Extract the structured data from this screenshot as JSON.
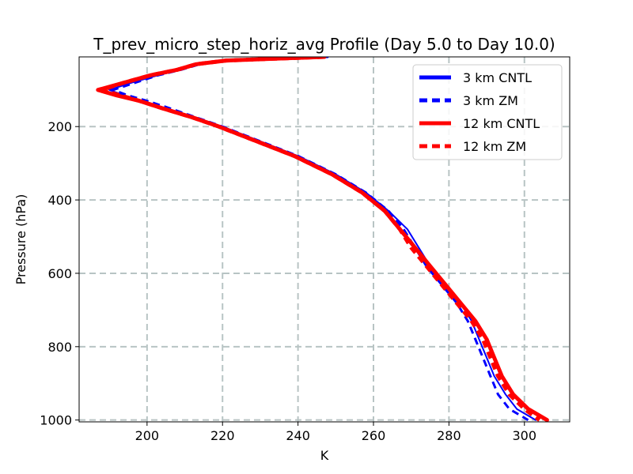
{
  "chart_data": {
    "type": "line",
    "title": "T_prev_micro_step_horiz_avg Profile (Day 5.0 to Day 10.0)",
    "xlabel": "K",
    "ylabel": "Pressure (hPa)",
    "xlim": [
      182,
      312
    ],
    "ylim": [
      1005,
      10
    ],
    "y_inverted": true,
    "grid": true,
    "x_ticks": [
      200,
      220,
      240,
      260,
      280,
      300
    ],
    "y_ticks": [
      200,
      400,
      600,
      800,
      1000
    ],
    "legend_position": "top-right",
    "series": [
      {
        "name": "3 km CNTL",
        "color": "#0000ff",
        "style": "solid",
        "points": [
          [
            248,
            10
          ],
          [
            235,
            15
          ],
          [
            222,
            20
          ],
          [
            214,
            30
          ],
          [
            209,
            45
          ],
          [
            203,
            60
          ],
          [
            196,
            80
          ],
          [
            190,
            100
          ],
          [
            194,
            115
          ],
          [
            199,
            130
          ],
          [
            205,
            150
          ],
          [
            213,
            175
          ],
          [
            220,
            200
          ],
          [
            230,
            240
          ],
          [
            240,
            280
          ],
          [
            250,
            330
          ],
          [
            258,
            380
          ],
          [
            264,
            430
          ],
          [
            269,
            480
          ],
          [
            272,
            530
          ],
          [
            275,
            580
          ],
          [
            279,
            630
          ],
          [
            283,
            680
          ],
          [
            286,
            730
          ],
          [
            288,
            780
          ],
          [
            290,
            830
          ],
          [
            292,
            880
          ],
          [
            295,
            930
          ],
          [
            298,
            970
          ],
          [
            303,
            1000
          ]
        ]
      },
      {
        "name": "3 km ZM",
        "color": "#0000ff",
        "style": "dashed",
        "points": [
          [
            248,
            10
          ],
          [
            235,
            15
          ],
          [
            222,
            20
          ],
          [
            214,
            30
          ],
          [
            209,
            45
          ],
          [
            203,
            60
          ],
          [
            197,
            80
          ],
          [
            191,
            100
          ],
          [
            195,
            115
          ],
          [
            200,
            130
          ],
          [
            206,
            150
          ],
          [
            213,
            175
          ],
          [
            220,
            200
          ],
          [
            230,
            240
          ],
          [
            240,
            280
          ],
          [
            250,
            330
          ],
          [
            258,
            380
          ],
          [
            264,
            430
          ],
          [
            268,
            480
          ],
          [
            271,
            530
          ],
          [
            274,
            580
          ],
          [
            278,
            630
          ],
          [
            282,
            680
          ],
          [
            285,
            730
          ],
          [
            287,
            780
          ],
          [
            289,
            830
          ],
          [
            291,
            880
          ],
          [
            293,
            930
          ],
          [
            296,
            970
          ],
          [
            301,
            1000
          ]
        ]
      },
      {
        "name": "12 km CNTL",
        "color": "#ff0000",
        "style": "solid",
        "points": [
          [
            247,
            10
          ],
          [
            234,
            15
          ],
          [
            221,
            20
          ],
          [
            213,
            30
          ],
          [
            208,
            45
          ],
          [
            201,
            60
          ],
          [
            194,
            80
          ],
          [
            187,
            100
          ],
          [
            192,
            115
          ],
          [
            198,
            130
          ],
          [
            204,
            150
          ],
          [
            212,
            175
          ],
          [
            219,
            200
          ],
          [
            229,
            240
          ],
          [
            239,
            280
          ],
          [
            249,
            330
          ],
          [
            257,
            380
          ],
          [
            263,
            430
          ],
          [
            267,
            480
          ],
          [
            271,
            530
          ],
          [
            275,
            580
          ],
          [
            279,
            630
          ],
          [
            283,
            680
          ],
          [
            287,
            730
          ],
          [
            290,
            780
          ],
          [
            292,
            830
          ],
          [
            294,
            880
          ],
          [
            297,
            930
          ],
          [
            301,
            970
          ],
          [
            306,
            1000
          ]
        ]
      },
      {
        "name": "12 km ZM",
        "color": "#ff0000",
        "style": "dashed",
        "points": [
          [
            247,
            10
          ],
          [
            234,
            15
          ],
          [
            221,
            20
          ],
          [
            213,
            30
          ],
          [
            208,
            45
          ],
          [
            201,
            60
          ],
          [
            194,
            80
          ],
          [
            188,
            100
          ],
          [
            193,
            115
          ],
          [
            198,
            130
          ],
          [
            204,
            150
          ],
          [
            212,
            175
          ],
          [
            219,
            200
          ],
          [
            229,
            240
          ],
          [
            239,
            280
          ],
          [
            249,
            330
          ],
          [
            257,
            380
          ],
          [
            263,
            430
          ],
          [
            267,
            480
          ],
          [
            270,
            530
          ],
          [
            274,
            580
          ],
          [
            278,
            630
          ],
          [
            282,
            680
          ],
          [
            286,
            730
          ],
          [
            289,
            780
          ],
          [
            291,
            830
          ],
          [
            293,
            880
          ],
          [
            296,
            930
          ],
          [
            300,
            970
          ],
          [
            304,
            1000
          ]
        ]
      }
    ]
  }
}
